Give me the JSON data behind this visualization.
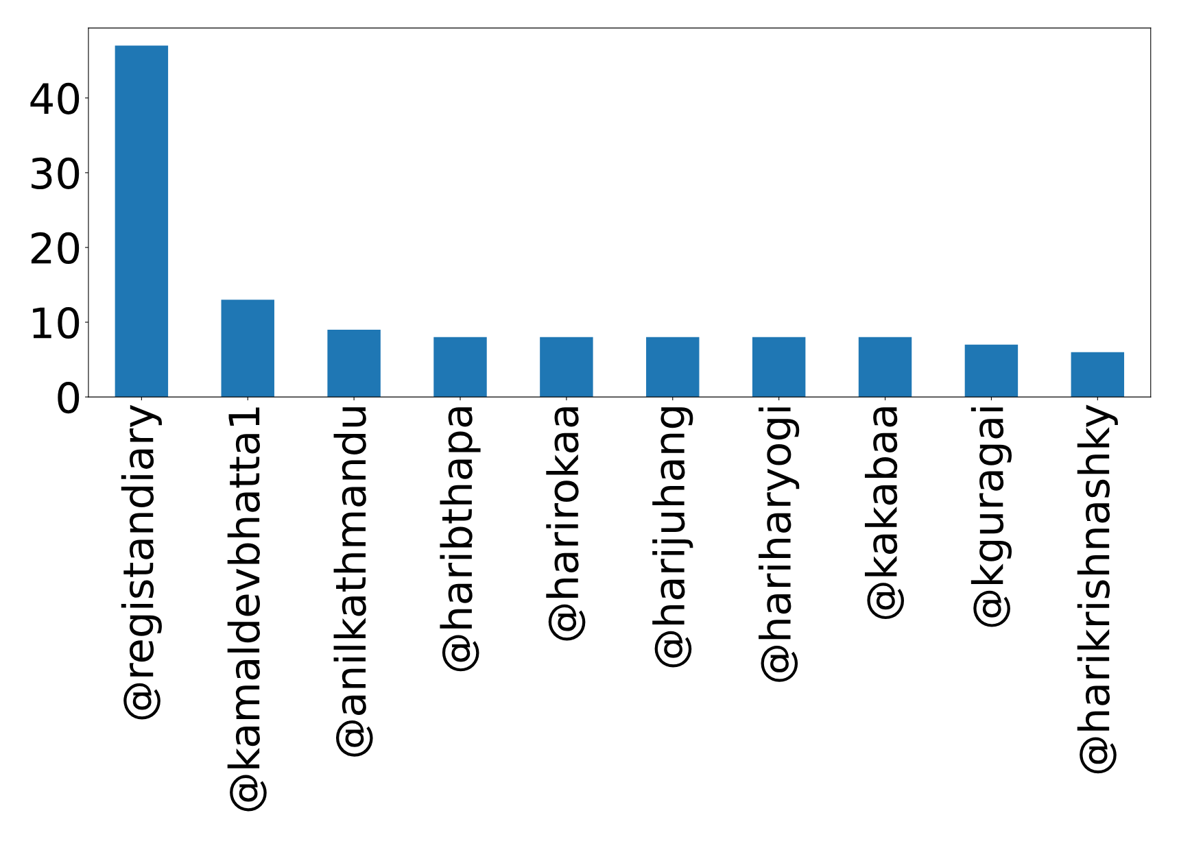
{
  "chart_data": {
    "type": "bar",
    "categories": [
      "@registandiary",
      "@kamaldevbhatta1",
      "@anilkathmandu",
      "@haribthapa",
      "@harirokaa",
      "@harijuhang",
      "@hariharyogi",
      "@kakabaa",
      "@kguragai",
      "@harikrishnashky"
    ],
    "values": [
      47,
      13,
      9,
      8,
      8,
      8,
      8,
      8,
      7,
      6
    ],
    "color": "#1f77b4",
    "ylim": [
      0,
      49.35
    ],
    "yticks": [
      0,
      10,
      20,
      30,
      40
    ],
    "grid": false
  }
}
